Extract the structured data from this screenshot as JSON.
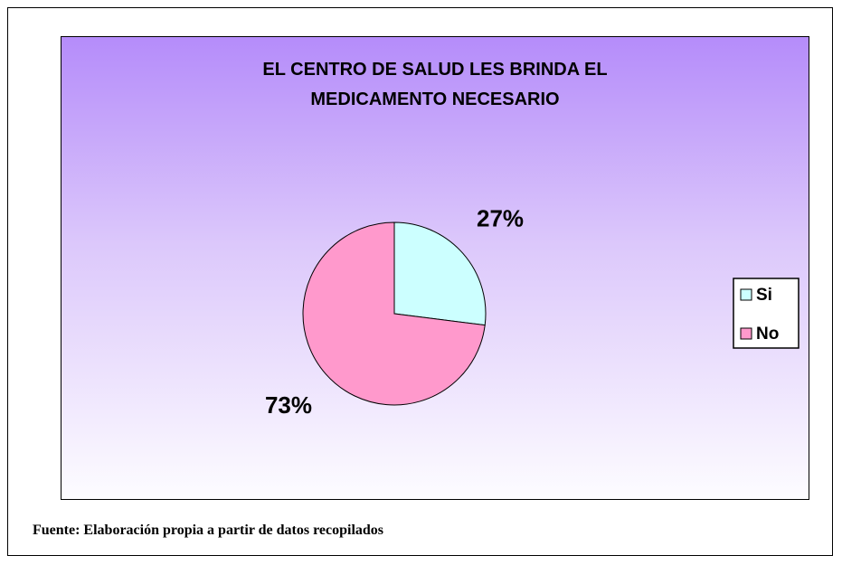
{
  "chart_data": {
    "type": "pie",
    "title": "EL CENTRO DE SALUD LES BRINDA EL MEDICAMENTO NECESARIO",
    "categories": [
      "Si",
      "No"
    ],
    "values": [
      27,
      73
    ],
    "value_labels": [
      "27%",
      "73%"
    ],
    "colors": [
      "#ccffff",
      "#ff99cc"
    ],
    "legend": "right"
  },
  "source": "Fuente: Elaboración propia a partir de datos recopilados"
}
